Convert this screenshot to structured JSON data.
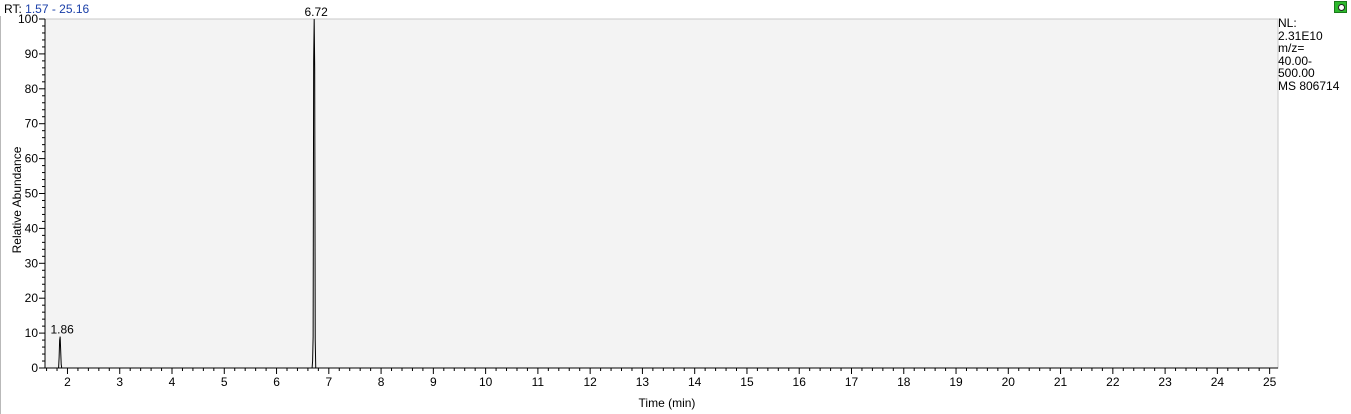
{
  "header": {
    "rt_prefix": "RT:",
    "rt_range": "1.57 - 25.16",
    "accent_color": "#1a3fa8"
  },
  "side_info": {
    "lines": [
      "NL:",
      "2.31E10",
      "m/z=",
      "40.00-",
      "500.00",
      "MS 806714"
    ]
  },
  "corner_icon": {
    "name": "status-icon",
    "color": "#2db82d"
  },
  "chart_data": {
    "type": "line",
    "title": "",
    "xlabel": "Time (min)",
    "ylabel": "Relative Abundance",
    "xlim": [
      1.57,
      25.16
    ],
    "ylim": [
      0,
      100
    ],
    "x_ticks": [
      2,
      3,
      4,
      5,
      6,
      7,
      8,
      9,
      10,
      11,
      12,
      13,
      14,
      15,
      16,
      17,
      18,
      19,
      20,
      21,
      22,
      23,
      24,
      25
    ],
    "y_ticks": [
      0,
      10,
      20,
      30,
      40,
      50,
      60,
      70,
      80,
      90,
      100
    ],
    "grid": false,
    "background": "#f3f3f3",
    "series": [
      {
        "x": [
          1.57,
          1.83,
          1.84,
          1.85,
          1.86,
          1.87,
          1.88,
          1.89,
          6.68,
          6.69,
          6.7,
          6.71,
          6.72,
          6.73,
          6.74,
          6.75,
          25.16
        ],
        "y": [
          0,
          0,
          3,
          8,
          9,
          5,
          1,
          0,
          0,
          2,
          9,
          88,
          100,
          86,
          8,
          0,
          0
        ]
      }
    ],
    "peak_labels": [
      {
        "x": 1.86,
        "y": 9,
        "text": "1.86"
      },
      {
        "x": 6.72,
        "y": 100,
        "text": "6.72"
      }
    ]
  }
}
